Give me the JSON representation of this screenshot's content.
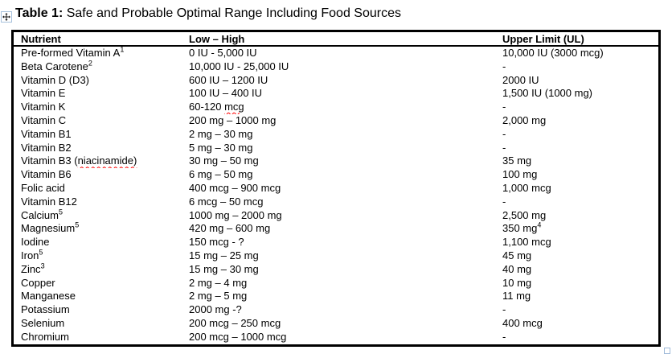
{
  "page": {
    "title_bold": "Table 1:",
    "title_rest": " Safe and Probable Optimal Range Including Food Sources"
  },
  "icons": {
    "move_handle": "four-way-move-arrow",
    "resize_handle": "table-resize-square"
  },
  "colors": {
    "text": "#000000",
    "table_border": "#000000",
    "handle_border": "#a7c1dc",
    "spellcheck_squiggle": "#ff0000"
  },
  "table": {
    "columns": [
      "Nutrient",
      "Low – High",
      "Upper Limit (UL)"
    ],
    "rows": [
      {
        "nutrient": "Pre-formed Vitamin A",
        "nutrient_sup": "1",
        "range": "0 IU - 5,000 IU",
        "upper": "10,000 IU (3000 mcg)"
      },
      {
        "nutrient": "Beta Carotene",
        "nutrient_sup": "2",
        "range": "10,000 IU - 25,000 IU",
        "upper": "-"
      },
      {
        "nutrient": "Vitamin D (D3)",
        "range": "600 IU – 1200 IU",
        "upper": "2000 IU"
      },
      {
        "nutrient": "Vitamin E",
        "range": "100 IU – 400 IU",
        "upper": "1,500 IU (1000 mg)"
      },
      {
        "nutrient": "Vitamin K",
        "range": "60-120 mcg",
        "range_squiggle": "mcg",
        "upper": "-"
      },
      {
        "nutrient": "Vitamin C",
        "range": "200 mg – 1000 mg",
        "upper": "2,000 mg"
      },
      {
        "nutrient": "Vitamin B1",
        "range": "2 mg – 30 mg",
        "upper": "-"
      },
      {
        "nutrient": "Vitamin B2",
        "range": "5 mg – 30 mg",
        "upper": "-"
      },
      {
        "nutrient": "Vitamin B3 (niacinamide)",
        "nutrient_squiggle": "niacinamide)",
        "range": "30 mg – 50 mg",
        "upper": "35 mg"
      },
      {
        "nutrient": "Vitamin B6",
        "range": "6 mg – 50 mg",
        "upper": "100 mg"
      },
      {
        "nutrient": "Folic acid",
        "range": "400 mcg – 900 mcg",
        "upper": "1,000 mcg"
      },
      {
        "nutrient": "Vitamin B12",
        "range": "6 mcg – 50 mcg",
        "upper": "-"
      },
      {
        "nutrient": "Calcium",
        "nutrient_sup": "5",
        "range": "1000 mg – 2000 mg",
        "upper": "2,500 mg"
      },
      {
        "nutrient": "Magnesium",
        "nutrient_sup": "5",
        "range": "420 mg – 600 mg",
        "upper": "350 mg",
        "upper_sup": "4"
      },
      {
        "nutrient": "Iodine",
        "range": "150 mcg - ?",
        "upper": "1,100 mcg"
      },
      {
        "nutrient": "Iron",
        "nutrient_sup": "5",
        "range": "15 mg – 25 mg",
        "upper": "45 mg"
      },
      {
        "nutrient": "Zinc",
        "nutrient_sup": "3",
        "range": "15 mg – 30 mg",
        "upper": "40 mg"
      },
      {
        "nutrient": "Copper",
        "range": "2 mg – 4 mg",
        "upper": "10 mg"
      },
      {
        "nutrient": "Manganese",
        "range": "2 mg – 5 mg",
        "upper": "11 mg"
      },
      {
        "nutrient": "Potassium",
        "range": "2000 mg -?",
        "upper": "-"
      },
      {
        "nutrient": "Selenium",
        "range": "200 mcg – 250 mcg",
        "upper": "400 mcg"
      },
      {
        "nutrient": "Chromium",
        "range": "200 mcg – 1000 mcg",
        "upper": "-"
      }
    ]
  }
}
